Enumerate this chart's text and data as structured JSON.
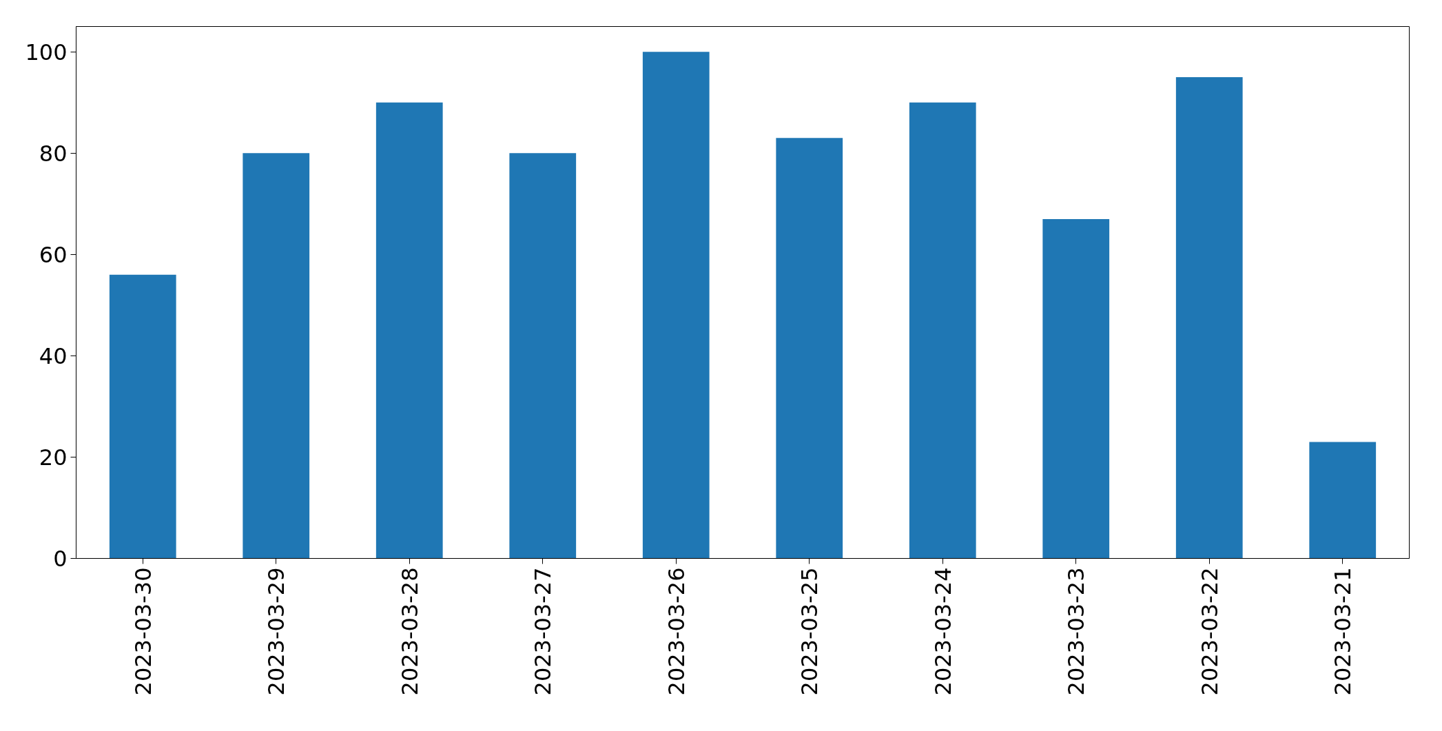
{
  "chart_data": {
    "type": "bar",
    "categories": [
      "2023-03-30",
      "2023-03-29",
      "2023-03-28",
      "2023-03-27",
      "2023-03-26",
      "2023-03-25",
      "2023-03-24",
      "2023-03-23",
      "2023-03-22",
      "2023-03-21"
    ],
    "values": [
      56,
      80,
      90,
      80,
      100,
      83,
      90,
      67,
      95,
      23
    ],
    "color": "#1f77b4",
    "ylim": [
      0,
      105
    ],
    "yticks": [
      0,
      20,
      40,
      60,
      80,
      100
    ],
    "grid": false
  }
}
